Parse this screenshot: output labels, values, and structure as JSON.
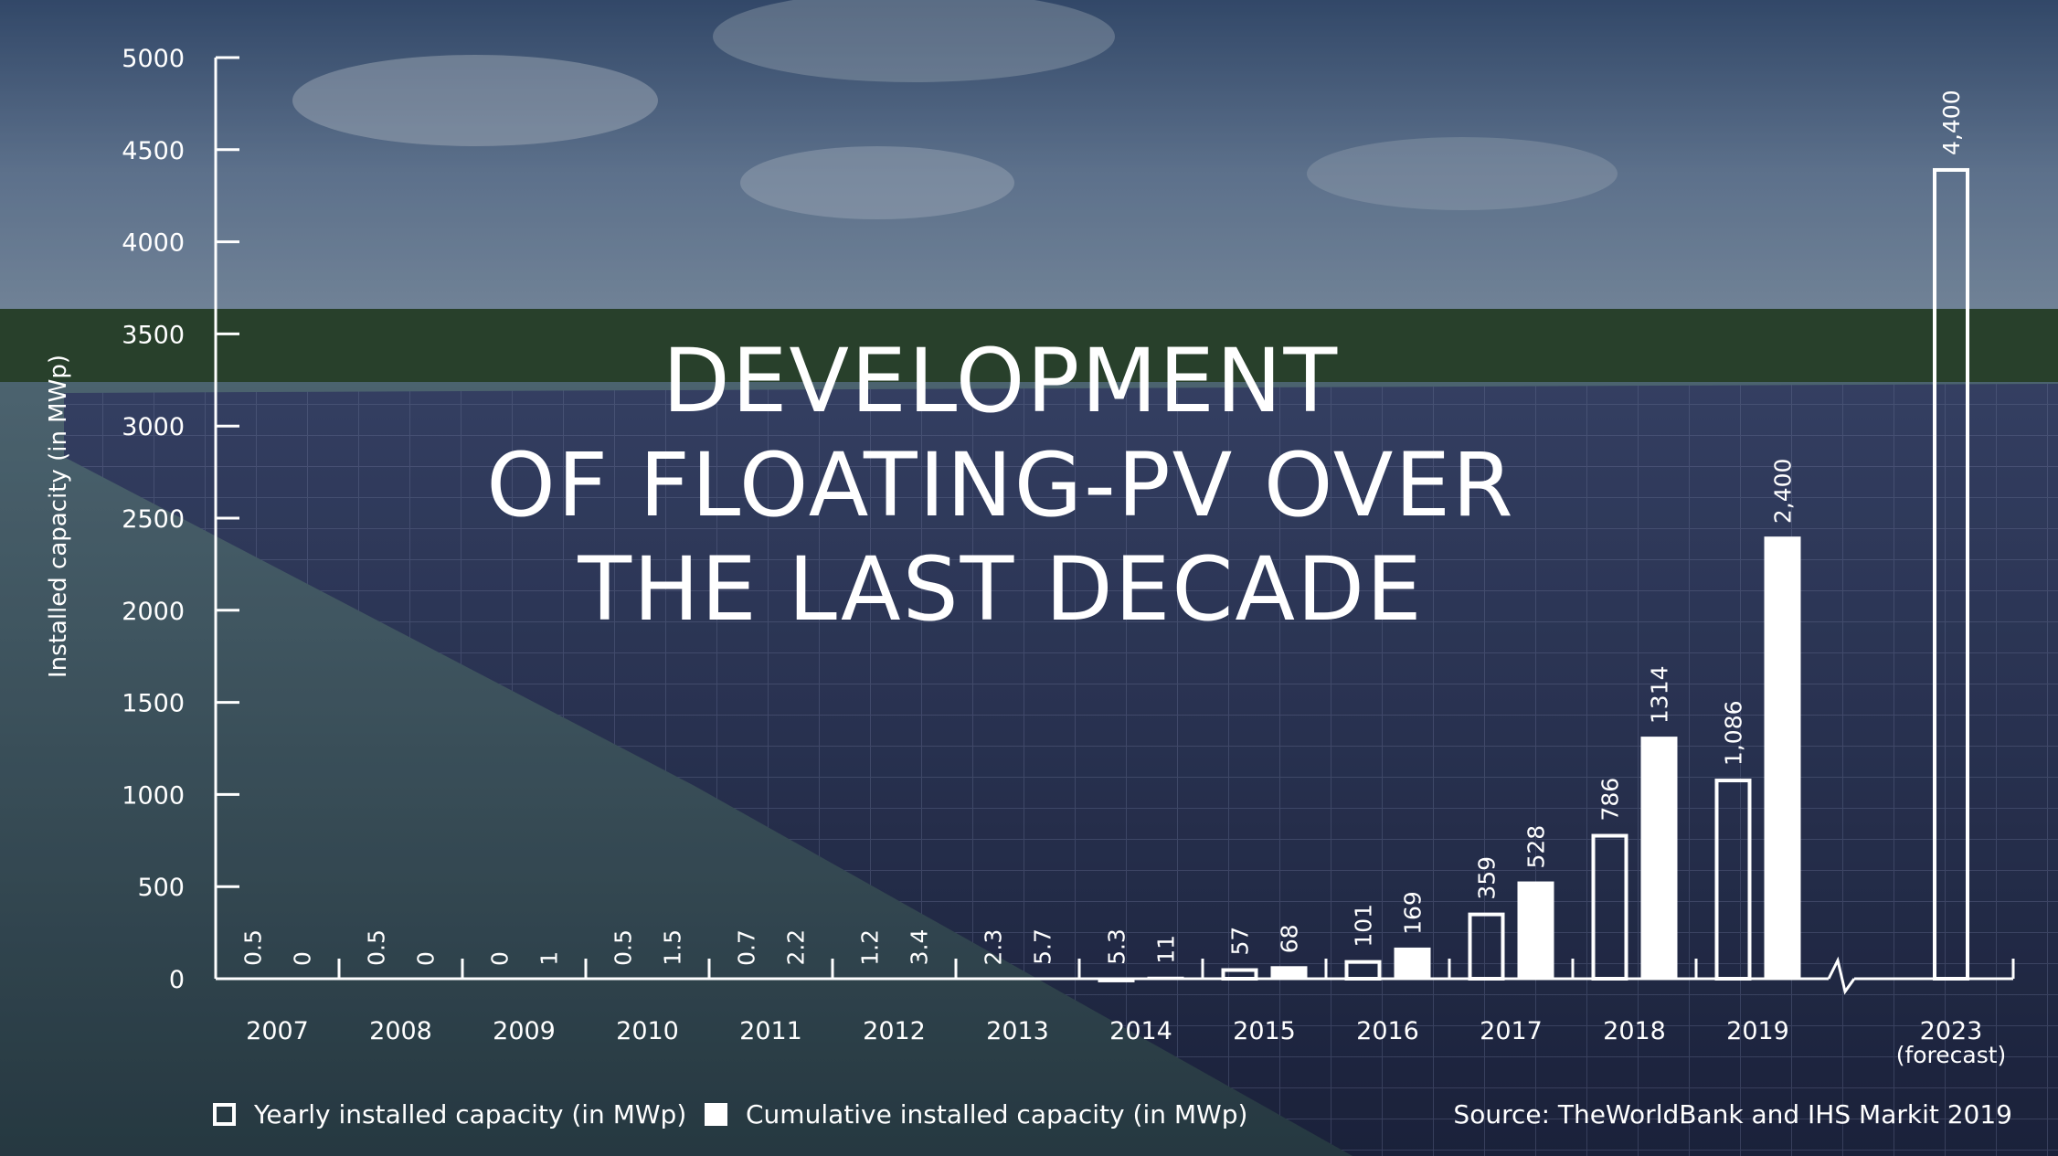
{
  "title_lines": [
    "DEVELOPMENT",
    "OF FLOATING-PV OVER",
    "THE LAST DECADE"
  ],
  "legend": {
    "yearly": "Yearly installed capacity (in MWp)",
    "cumulative": "Cumulative installed capacity (in MWp)"
  },
  "source": "Source: TheWorldBank and IHS Markit 2019",
  "chart_data": {
    "type": "bar",
    "title": "DEVELOPMENT OF FLOATING-PV OVER THE LAST DECADE",
    "xlabel": "",
    "ylabel": "Installed capacity (in MWp)",
    "ylim": [
      0,
      5000
    ],
    "yticks": [
      0,
      500,
      1000,
      1500,
      2000,
      2500,
      3000,
      3500,
      4000,
      4500,
      5000
    ],
    "categories": [
      "2007",
      "2008",
      "2009",
      "2010",
      "2011",
      "2012",
      "2013",
      "2014",
      "2015",
      "2016",
      "2017",
      "2018",
      "2019",
      "2023"
    ],
    "category_sublabels": [
      "",
      "",
      "",
      "",
      "",
      "",
      "",
      "",
      "",
      "",
      "",
      "",
      "",
      "(forecast)"
    ],
    "axis_break_between": [
      "2019",
      "2023"
    ],
    "series": [
      {
        "name": "Yearly installed capacity (in MWp)",
        "style": "outline",
        "values": [
          0.5,
          0.5,
          0,
          0.5,
          0.7,
          1.2,
          2.3,
          5.3,
          57,
          101,
          359,
          786,
          1086,
          4400
        ],
        "labels": [
          "0.5",
          "0.5",
          "0",
          "0.5",
          "0.7",
          "1.2",
          "2.3",
          "5.3",
          "57",
          "101",
          "359",
          "786",
          "1,086",
          "4,400"
        ]
      },
      {
        "name": "Cumulative installed capacity (in MWp)",
        "style": "solid",
        "values": [
          0,
          0,
          1,
          1.5,
          2.2,
          3.4,
          5.7,
          11,
          68,
          169,
          528,
          1314,
          2400,
          null
        ],
        "labels": [
          "0",
          "0",
          "1",
          "1.5",
          "2.2",
          "3.4",
          "5.7",
          "11",
          "68",
          "169",
          "528",
          "1314",
          "2,400",
          ""
        ]
      }
    ],
    "grid": false,
    "legend_position": "bottom-left",
    "colors": {
      "foreground": "#ffffff"
    }
  }
}
